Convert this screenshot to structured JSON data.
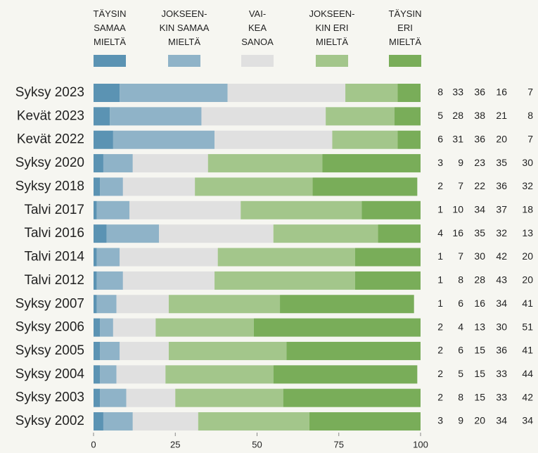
{
  "chart_data": {
    "type": "stacked-bar",
    "categories": [
      "Syksy 2023",
      "Kevät 2023",
      "Kevät 2022",
      "Syksy 2020",
      "Syksy 2018",
      "Talvi 2017",
      "Talvi 2016",
      "Talvi 2014",
      "Talvi 2012",
      "Syksy 2007",
      "Syksy 2006",
      "Syksy 2005",
      "Syksy 2004",
      "Syksy 2003",
      "Syksy 2002"
    ],
    "series": [
      {
        "name": "TÄYSIN\nSAMAA\nMIELTÄ",
        "color": "#5b93b3",
        "values": [
          8,
          5,
          6,
          3,
          2,
          1,
          4,
          1,
          1,
          1,
          2,
          2,
          2,
          2,
          3
        ]
      },
      {
        "name": "JOKSEEN-\nKIN SAMAA\nMIELTÄ",
        "color": "#8fb3c8",
        "values": [
          33,
          28,
          31,
          9,
          7,
          10,
          16,
          7,
          8,
          6,
          4,
          6,
          5,
          8,
          9
        ]
      },
      {
        "name": "VAI-\nKEA\nSANOA",
        "color": "#e0e0e0",
        "values": [
          36,
          38,
          36,
          23,
          22,
          34,
          35,
          30,
          28,
          16,
          13,
          15,
          15,
          15,
          20
        ]
      },
      {
        "name": "JOKSEEN-\nKIN ERI\nMIELTÄ",
        "color": "#a3c68b",
        "values": [
          16,
          21,
          20,
          35,
          36,
          37,
          32,
          42,
          43,
          34,
          30,
          36,
          33,
          33,
          34
        ]
      },
      {
        "name": "TÄYSIN\nERI\nMIELTÄ",
        "color": "#79ad59",
        "values": [
          7,
          8,
          7,
          30,
          32,
          18,
          13,
          20,
          20,
          41,
          51,
          41,
          44,
          42,
          34
        ]
      }
    ],
    "xlim": [
      0,
      100
    ],
    "xticks": [
      0,
      25,
      50,
      75,
      100
    ]
  }
}
